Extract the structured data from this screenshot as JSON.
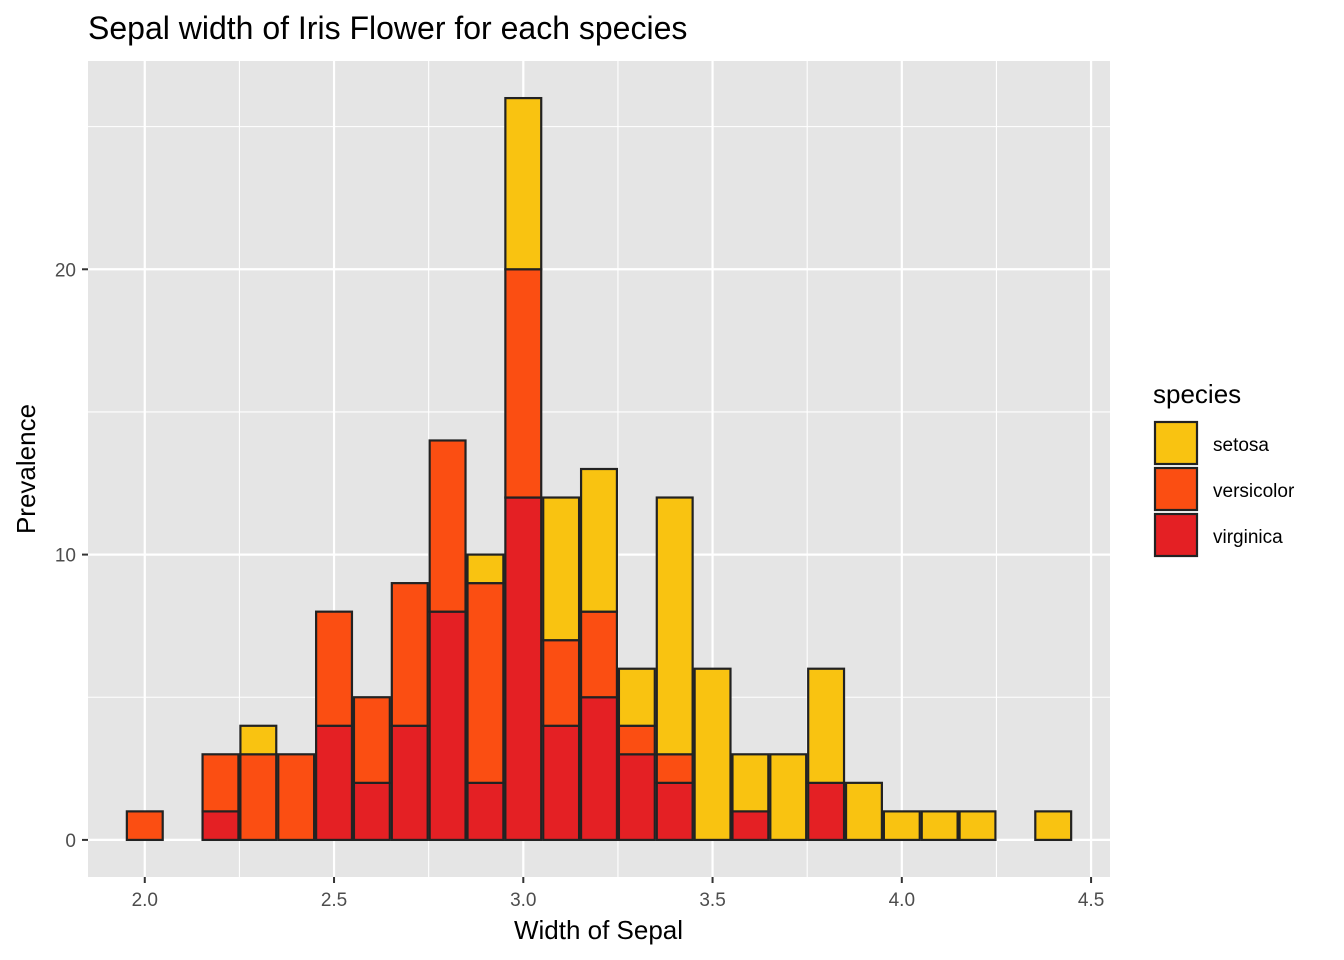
{
  "chart_data": {
    "type": "bar",
    "stacked": true,
    "title": "Sepal width of Iris Flower for each species",
    "xlabel": "Width of Sepal",
    "ylabel": "Prevalence",
    "xlim": [
      1.85,
      4.55
    ],
    "ylim": [
      -1.3,
      27.3
    ],
    "bin_width": 0.1,
    "x_ticks": [
      {
        "value": 2.0,
        "label": "2.0"
      },
      {
        "value": 2.5,
        "label": "2.5"
      },
      {
        "value": 3.0,
        "label": "3.0"
      },
      {
        "value": 3.5,
        "label": "3.5"
      },
      {
        "value": 4.0,
        "label": "4.0"
      },
      {
        "value": 4.5,
        "label": "4.5"
      }
    ],
    "y_ticks": [
      {
        "value": 0,
        "label": "0"
      },
      {
        "value": 10,
        "label": "10"
      },
      {
        "value": 20,
        "label": "20"
      }
    ],
    "grid": true,
    "legend": {
      "title": "species",
      "position": "right"
    },
    "stack_order": [
      "virginica",
      "versicolor",
      "setosa"
    ],
    "x": [
      2.0,
      2.1,
      2.2,
      2.3,
      2.4,
      2.5,
      2.6,
      2.7,
      2.8,
      2.9,
      3.0,
      3.1,
      3.2,
      3.3,
      3.4,
      3.5,
      3.6,
      3.7,
      3.8,
      3.9,
      4.0,
      4.1,
      4.2,
      4.3,
      4.4
    ],
    "series": [
      {
        "name": "setosa",
        "color": "#F9C311",
        "values": [
          0,
          0,
          0,
          1,
          0,
          0,
          0,
          0,
          0,
          1,
          6,
          5,
          5,
          2,
          9,
          6,
          2,
          3,
          4,
          2,
          1,
          1,
          1,
          0,
          1
        ]
      },
      {
        "name": "versicolor",
        "color": "#FB4E12",
        "values": [
          1,
          0,
          2,
          3,
          3,
          4,
          3,
          5,
          6,
          7,
          8,
          3,
          3,
          1,
          1,
          0,
          0,
          0,
          0,
          0,
          0,
          0,
          0,
          0,
          0
        ]
      },
      {
        "name": "virginica",
        "color": "#E42024",
        "values": [
          0,
          0,
          1,
          0,
          0,
          4,
          2,
          4,
          8,
          2,
          12,
          4,
          5,
          3,
          2,
          0,
          1,
          0,
          2,
          0,
          0,
          0,
          0,
          0,
          0
        ]
      }
    ],
    "colors": {
      "panel_background": "#E5E5E5",
      "grid_line": "#FFFFFF",
      "bar_outline": "#222222"
    }
  }
}
